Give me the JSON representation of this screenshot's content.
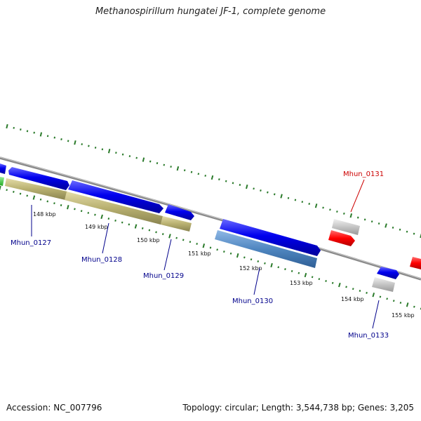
{
  "title": "Methanospirillum hungatei JF-1, complete genome",
  "footer": {
    "accession": "Accession: NC_007796",
    "summary": "Topology: circular; Length: 3,544,738 bp; Genes: 3,205"
  },
  "ticks": [
    {
      "label": "148 kbp"
    },
    {
      "label": "149 kbp"
    },
    {
      "label": "150 kbp"
    },
    {
      "label": "151 kbp"
    },
    {
      "label": "152 kbp"
    },
    {
      "label": "153 kbp"
    },
    {
      "label": "154 kbp"
    },
    {
      "label": "155 kbp"
    }
  ],
  "gene_labels": [
    {
      "text": "Mhun_0127",
      "color": "#00008b"
    },
    {
      "text": "Mhun_0128",
      "color": "#00008b"
    },
    {
      "text": "Mhun_0129",
      "color": "#00008b"
    },
    {
      "text": "Mhun_0130",
      "color": "#00008b"
    },
    {
      "text": "Mhun_0131",
      "color": "#cc0000"
    },
    {
      "text": "Mhun_0133",
      "color": "#00008b"
    }
  ],
  "colors": {
    "backbone": "#8a8a8a",
    "cds": "#0000ee",
    "rrna_or_other": "#b8b070",
    "steel": "#4f86c0",
    "pseudo": "#c0c0c0",
    "trna": "#ff0000",
    "green": "#33cc33",
    "tick": "#2a7a2a"
  }
}
